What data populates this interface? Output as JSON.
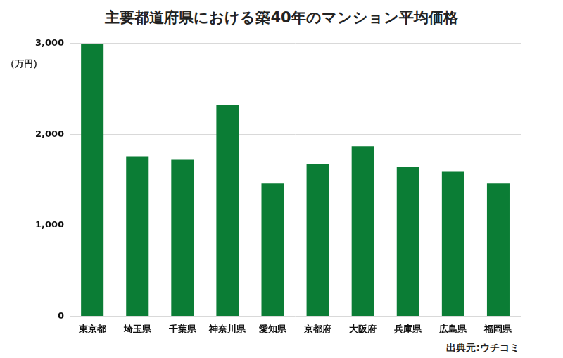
{
  "chart_data": {
    "type": "bar",
    "title": "主要都道府県における築40年のマンション平均価格",
    "ylabel": "（万円）",
    "source": "出典元:ウチコミ",
    "categories": [
      "東京都",
      "埼玉県",
      "千葉県",
      "神奈川県",
      "愛知県",
      "京都府",
      "大阪府",
      "兵庫県",
      "広島県",
      "福岡県"
    ],
    "values": [
      2990,
      1760,
      1720,
      2320,
      1460,
      1670,
      1870,
      1640,
      1590,
      1460
    ],
    "color": "#0b7d35",
    "ylim": [
      0,
      3000
    ],
    "yticks": [
      0,
      {
        "value": 1000,
        "label": "1,000"
      },
      {
        "value": 2000,
        "label": "2,000"
      },
      {
        "value": 3000,
        "label": "3,000"
      }
    ],
    "grid": true
  }
}
